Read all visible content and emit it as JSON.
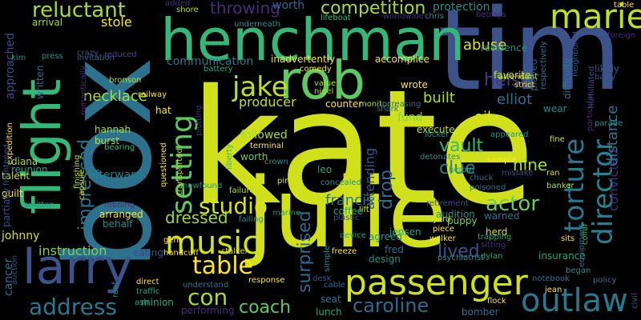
{
  "word_cloud": {
    "background": "#000000",
    "words": [
      {
        "text": "kate",
        "color": "#d0e11c"
      },
      {
        "text": "box",
        "color": "#2c728e"
      },
      {
        "text": "tim",
        "color": "#3b528b"
      },
      {
        "text": "julie",
        "color": "#d0e11c"
      },
      {
        "text": "henchman",
        "color": "#35b779"
      },
      {
        "text": "rob",
        "color": "#5ec962"
      },
      {
        "text": "flight",
        "color": "#35b779"
      },
      {
        "text": "larry",
        "color": "#3b528b"
      },
      {
        "text": "passenger",
        "color": "#d0e11c"
      },
      {
        "text": "marie",
        "color": "#bddf26"
      },
      {
        "text": "outlaw",
        "color": "#2a788e"
      },
      {
        "text": "music",
        "color": "#d0e11c"
      },
      {
        "text": "jake",
        "color": "#bddf26"
      },
      {
        "text": "setting",
        "color": "#5ec962"
      },
      {
        "text": "director",
        "color": "#26828e"
      },
      {
        "text": "torture",
        "color": "#2a788e"
      },
      {
        "text": "table",
        "color": "#fde725"
      },
      {
        "text": "studio",
        "color": "#d8e219"
      },
      {
        "text": "address",
        "color": "#2a788e"
      },
      {
        "text": "con",
        "color": "#a5db36"
      },
      {
        "text": "actor",
        "color": "#6ccd5a"
      },
      {
        "text": "reluctant",
        "color": "#a5db36"
      },
      {
        "text": "competition",
        "color": "#a5db36"
      },
      {
        "text": "caroline",
        "color": "#31688e"
      },
      {
        "text": "coach",
        "color": "#5ec962"
      },
      {
        "text": "surprised",
        "color": "#31688e"
      },
      {
        "text": "lived",
        "color": "#3b528b"
      },
      {
        "text": "impressed",
        "color": "#2c728e"
      },
      {
        "text": "heist",
        "color": "#443a83"
      },
      {
        "text": "throwing",
        "color": "#472d7b"
      },
      {
        "text": "clue",
        "color": "#26828e"
      },
      {
        "text": "vault",
        "color": "#35b779"
      },
      {
        "text": "drop",
        "color": "#31688e"
      },
      {
        "text": "nine",
        "color": "#a5db36"
      },
      {
        "text": "dressed",
        "color": "#95d840"
      },
      {
        "text": "instruction",
        "color": "#7ad151"
      },
      {
        "text": "producer",
        "color": "#c2df23"
      },
      {
        "text": "built",
        "color": "#b5de2b"
      },
      {
        "text": "elliot",
        "color": "#2c728e"
      },
      {
        "text": "convicted",
        "color": "#472d7b"
      },
      {
        "text": "distance",
        "color": "#2a788e"
      },
      {
        "text": "abuse",
        "color": "#d8e219"
      },
      {
        "text": "stole",
        "color": "#fde725"
      },
      {
        "text": "francis",
        "color": "#2a788e"
      },
      {
        "text": "oil",
        "color": "#dfe318"
      },
      {
        "text": "communication",
        "color": "#2a788e"
      },
      {
        "text": "necklace",
        "color": "#a5db36"
      },
      {
        "text": "followed",
        "color": "#a5db36"
      },
      {
        "text": "attending",
        "color": "#3b528b"
      },
      {
        "text": "cancer",
        "color": "#2c728e"
      },
      {
        "text": "approached",
        "color": "#3e4a89"
      },
      {
        "text": "inadvertently",
        "color": "#fde725"
      },
      {
        "text": "protection",
        "color": "#21918c"
      },
      {
        "text": "fund",
        "color": "#7ad151"
      },
      {
        "text": "worth",
        "color": "#31688e"
      },
      {
        "text": "afterward",
        "color": "#26828e"
      },
      {
        "text": "arrival",
        "color": "#a5db36"
      },
      {
        "text": "johnny",
        "color": "#d8e219"
      },
      {
        "text": "eating",
        "color": "#3e4a89"
      },
      {
        "text": "residence",
        "color": "#21918c"
      },
      {
        "text": "favorite",
        "color": "#d8e219"
      },
      {
        "text": "puppy",
        "color": "#7ad151"
      },
      {
        "text": "fred",
        "color": "#2c728e"
      },
      {
        "text": "design",
        "color": "#21918c"
      },
      {
        "text": "leo",
        "color": "#22a884"
      },
      {
        "text": "insurance",
        "color": "#22a884"
      },
      {
        "text": "worth",
        "color": "#6ccd5a"
      },
      {
        "text": "accomplice",
        "color": "#fde725"
      },
      {
        "text": "written",
        "color": "#31688e"
      },
      {
        "text": "hannah",
        "color": "#a5db36"
      },
      {
        "text": "diana",
        "color": "#a5db36"
      },
      {
        "text": "reunion",
        "color": "#22a884"
      },
      {
        "text": "guilt",
        "color": "#fde725"
      },
      {
        "text": "arranged",
        "color": "#fde725"
      },
      {
        "text": "behalf",
        "color": "#21918c"
      },
      {
        "text": "understand",
        "color": "#2a788e"
      },
      {
        "text": "minion",
        "color": "#22a884"
      },
      {
        "text": "performing",
        "color": "#472d7b"
      },
      {
        "text": "counter",
        "color": "#fde725"
      },
      {
        "text": "wrote",
        "color": "#fde725"
      },
      {
        "text": "execute",
        "color": "#b5de2b"
      },
      {
        "text": "herd",
        "color": "#d8e219"
      },
      {
        "text": "audition",
        "color": "#21918c"
      },
      {
        "text": "warned",
        "color": "#2c728e"
      },
      {
        "text": "agreed",
        "color": "#21918c"
      },
      {
        "text": "jensen",
        "color": "#22a884"
      },
      {
        "text": "shore",
        "color": "#b5de2b"
      },
      {
        "text": "bronson",
        "color": "#b5de2b"
      },
      {
        "text": "talent",
        "color": "#d0e11c"
      },
      {
        "text": "partially",
        "color": "#3e4a89"
      },
      {
        "text": "heroin",
        "color": "#22a884"
      },
      {
        "text": "lift",
        "color": "#d8e219"
      },
      {
        "text": "coffee",
        "color": "#22a884"
      },
      {
        "text": "retirement",
        "color": "#3b528b"
      },
      {
        "text": "hat",
        "color": "#fde725"
      },
      {
        "text": "burst",
        "color": "#b5de2b"
      },
      {
        "text": "lunch",
        "color": "#22a884"
      },
      {
        "text": "seat",
        "color": "#2c728e"
      },
      {
        "text": "bomber",
        "color": "#2c728e"
      },
      {
        "text": "cable",
        "color": "#31688e"
      },
      {
        "text": "desk",
        "color": "#3b528b"
      },
      {
        "text": "psychiatrist",
        "color": "#21918c"
      },
      {
        "text": "walker",
        "color": "#fde725"
      },
      {
        "text": "dylan",
        "color": "#22a884"
      },
      {
        "text": "notebook",
        "color": "#2c728e"
      },
      {
        "text": "policy",
        "color": "#2c728e"
      },
      {
        "text": "began",
        "color": "#21918c"
      },
      {
        "text": "sits",
        "color": "#fde725"
      },
      {
        "text": "played",
        "color": "#3b528b"
      },
      {
        "text": "difficulty",
        "color": "#2c728e"
      },
      {
        "text": "wear",
        "color": "#21918c"
      },
      {
        "text": "fine",
        "color": "#d8e219"
      },
      {
        "text": "sample",
        "color": "#fde725"
      },
      {
        "text": "mistake",
        "color": "#3b528b"
      },
      {
        "text": "ran",
        "color": "#d8e219"
      },
      {
        "text": "banker",
        "color": "#b5de2b"
      },
      {
        "text": "chuck",
        "color": "#2c728e"
      },
      {
        "text": "poisoned",
        "color": "#2c728e"
      },
      {
        "text": "detonates",
        "color": "#21918c"
      },
      {
        "text": "locker",
        "color": "#21918c"
      },
      {
        "text": "appeared",
        "color": "#21918c"
      },
      {
        "text": "shark",
        "color": "#2c728e"
      },
      {
        "text": "nigel",
        "color": "#b5de2b"
      },
      {
        "text": "value",
        "color": "#b5de2b"
      },
      {
        "text": "monitor",
        "color": "#b5de2b"
      },
      {
        "text": "comedy",
        "color": "#fde725"
      },
      {
        "text": "battery",
        "color": "#22a884"
      },
      {
        "text": "railway",
        "color": "#fde725"
      },
      {
        "text": "plotting",
        "color": "#472d7b"
      },
      {
        "text": "transported",
        "color": "#b5de2b"
      },
      {
        "text": "questioned",
        "color": "#fde725"
      },
      {
        "text": "bearing",
        "color": "#35b779"
      },
      {
        "text": "crown",
        "color": "#21918c"
      },
      {
        "text": "pin",
        "color": "#d8e219"
      },
      {
        "text": "terminal",
        "color": "#fde725"
      },
      {
        "text": "liberty",
        "color": "#35b779"
      },
      {
        "text": "failure",
        "color": "#b5de2b"
      },
      {
        "text": "newfound",
        "color": "#21918c"
      },
      {
        "text": "stalker",
        "color": "#d8e219"
      },
      {
        "text": "failing",
        "color": "#21918c"
      },
      {
        "text": "handcuff",
        "color": "#fde725"
      },
      {
        "text": "direct",
        "color": "#fde725"
      },
      {
        "text": "traffic",
        "color": "#22a884"
      },
      {
        "text": "gene",
        "color": "#fde725"
      },
      {
        "text": "response",
        "color": "#fde725"
      },
      {
        "text": "marine",
        "color": "#21918c"
      },
      {
        "text": "invitation",
        "color": "#31688e"
      },
      {
        "text": "crazy",
        "color": "#3b528b"
      },
      {
        "text": "press",
        "color": "#21918c"
      },
      {
        "text": "reduced",
        "color": "#3e4a89"
      },
      {
        "text": "expedition",
        "color": "#fde725"
      },
      {
        "text": "underneath",
        "color": "#21918c"
      },
      {
        "text": "lifeboat",
        "color": "#35b779"
      },
      {
        "text": "chris",
        "color": "#21918c"
      },
      {
        "text": "foreign",
        "color": "#472d7b"
      },
      {
        "text": "likely",
        "color": "#3b528b"
      },
      {
        "text": "barry",
        "color": "#3b528b"
      },
      {
        "text": "parade",
        "color": "#21918c"
      },
      {
        "text": "particular",
        "color": "#472d7b"
      },
      {
        "text": "equipment",
        "color": "#2c728e"
      },
      {
        "text": "neighbored",
        "color": "#3b528b"
      },
      {
        "text": "respectively",
        "color": "#2c728e"
      },
      {
        "text": "humiliated",
        "color": "#3e4a89"
      },
      {
        "text": "civil",
        "color": "#3b528b"
      },
      {
        "text": "jean",
        "color": "#fde725"
      },
      {
        "text": "collar",
        "color": "#35b779"
      },
      {
        "text": "sitting",
        "color": "#472d7b"
      },
      {
        "text": "trapping",
        "color": "#22a884"
      },
      {
        "text": "flock",
        "color": "#fde725"
      },
      {
        "text": "attendant",
        "color": "#b5de2b"
      },
      {
        "text": "strict",
        "color": "#fde725"
      },
      {
        "text": "increasing",
        "color": "#31688e"
      },
      {
        "text": "simple",
        "color": "#21918c"
      },
      {
        "text": "freeze",
        "color": "#fde725"
      },
      {
        "text": "plastic",
        "color": "#3b528b"
      },
      {
        "text": "yard",
        "color": "#d8e219"
      },
      {
        "text": "device",
        "color": "#22a884"
      },
      {
        "text": "piece",
        "color": "#fde725"
      },
      {
        "text": "concealed",
        "color": "#21918c"
      },
      {
        "text": "romantically",
        "color": "#472d7b"
      },
      {
        "text": "finishing",
        "color": "#b5de2b"
      },
      {
        "text": "capsule",
        "color": "#d8e219"
      },
      {
        "text": "smitten",
        "color": "#21918c"
      },
      {
        "text": "frightened",
        "color": "#3b528b"
      },
      {
        "text": "auction",
        "color": "#3b528b"
      },
      {
        "text": "robbing",
        "color": "#472d7b"
      },
      {
        "text": "reef",
        "color": "#21918c"
      },
      {
        "text": "ash",
        "color": "#22a884"
      },
      {
        "text": "added",
        "color": "#472d7b"
      },
      {
        "text": "worldwide",
        "color": "#472d7b"
      },
      {
        "text": "betrays",
        "color": "#472d7b"
      },
      {
        "text": "table",
        "color": "#fde725"
      },
      {
        "text": "kim",
        "color": "#21918c"
      }
    ]
  }
}
